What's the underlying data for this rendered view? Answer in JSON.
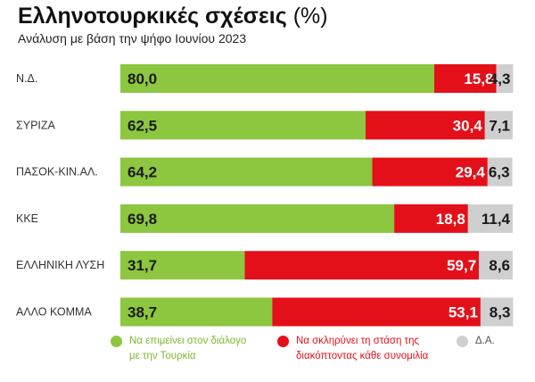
{
  "header": {
    "title": "Ελληνοτουρκικές σχέσεις",
    "title_unit": "(%)",
    "subtitle": "Ανάλυση με βάση την ψήφο Ιουνίου 2023"
  },
  "chart_data": {
    "type": "bar",
    "orientation": "horizontal",
    "stacked": true,
    "title": "Ελληνοτουρκικές σχέσεις (%)",
    "subtitle": "Ανάλυση με βάση την ψήφο Ιουνίου 2023",
    "categories": [
      "Ν.Δ.",
      "ΣΥΡΙΖΑ",
      "ΠΑΣΟΚ-ΚΙΝ.ΑΛ.",
      "ΚΚΕ",
      "ΕΛΛΗΝΙΚΗ ΛΥΣΗ",
      "ΑΛΛΟ ΚΟΜΜΑ"
    ],
    "series": [
      {
        "name": "Να επιμείνει στον διάλογο με την Τουρκία",
        "color": "#8dc63f",
        "label_color": "#1a1a1a",
        "values": [
          80.0,
          62.5,
          64.2,
          69.8,
          31.7,
          38.7
        ],
        "labels": [
          "80,0",
          "62,5",
          "64,2",
          "69,8",
          "31,7",
          "38,7"
        ]
      },
      {
        "name": "Να σκληρύνει τη στάση της διακόπτοντας κάθε συνομιλία",
        "color": "#e3101a",
        "label_color": "#ffffff",
        "values": [
          15.8,
          30.4,
          29.4,
          18.8,
          59.7,
          53.1
        ],
        "labels": [
          "15,8",
          "30,4",
          "29,4",
          "18,8",
          "59,7",
          "53,1"
        ]
      },
      {
        "name": "Δ.Α.",
        "color": "#cfcfcf",
        "label_color": "#1a1a1a",
        "values": [
          4.3,
          7.1,
          6.3,
          11.4,
          8.6,
          8.3
        ],
        "labels": [
          "4,3",
          "7,1",
          "6,3",
          "11,4",
          "8,6",
          "8,3"
        ]
      }
    ],
    "xlim": [
      0,
      100
    ],
    "grid": false,
    "legend_position": "bottom"
  },
  "legend": {
    "items": [
      {
        "label": "Να επιμείνει στον διάλογο\nμε την Τουρκία",
        "color": "#8dc63f",
        "text_color": "#7cb82f"
      },
      {
        "label": "Να σκληρύνει τη στάση της\nδιακόπτοντας κάθε συνομιλία",
        "color": "#e3101a",
        "text_color": "#e3101a"
      },
      {
        "label": "Δ.Α.",
        "color": "#cfcfcf",
        "text_color": "#555555"
      }
    ]
  }
}
